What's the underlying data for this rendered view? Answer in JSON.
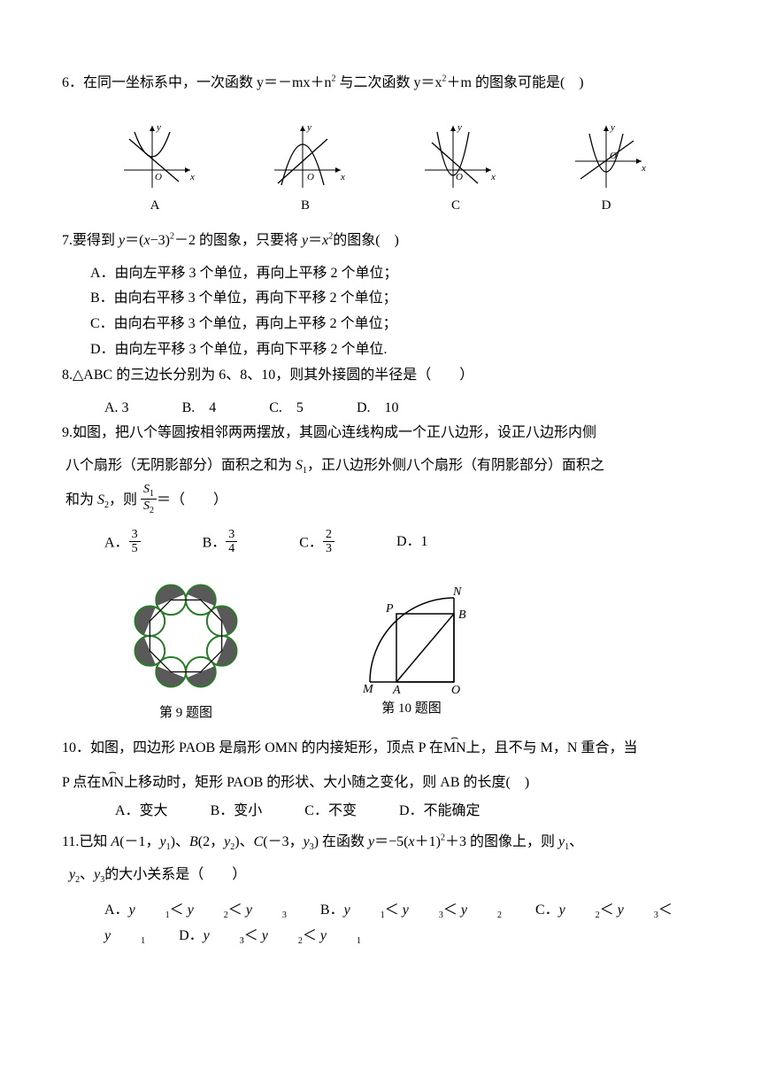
{
  "q6": {
    "num": "6．",
    "text": "在同一坐标系中，一次函数 y＝－mx＋n² 与二次函数 y＝x²＋m 的图象可能是(　)",
    "labels": [
      "A",
      "B",
      "C",
      "D"
    ]
  },
  "q7": {
    "num": "7.",
    "text": "要得到 ",
    "eq1": "y＝(x−3)²−2",
    "text2": " 的图象，只要将 ",
    "eq2": "y＝x²",
    "text3": "的图象(　)",
    "opts": {
      "a": "A．由向左平移 3 个单位，再向上平移 2 个单位；",
      "b": "B．由向右平移 3 个单位，再向下平移 2 个单位；",
      "c": "C．由向右平移 3 个单位，再向上平移 2 个单位；",
      "d": "D．由向左平移 3 个单位，再向下平移 2 个单位."
    }
  },
  "q8": {
    "num": "8.",
    "text": "△ABC 的三边长分别为 6、8、10，则其外接圆的半径是（　　）",
    "opts": {
      "a": "A. 3",
      "b": "B.　4",
      "c": "C.　5",
      "d": "D.　10"
    }
  },
  "q9": {
    "num": "9.",
    "line1": "如图，把八个等圆按相邻两两摆放，其圆心连线构成一个正八边形，设正八边形内侧",
    "line2_a": "八个扇形（无阴影部分）面积之和为 ",
    "s1": "S₁",
    "line2_b": "，正八边形外侧八个扇形（有阴影部分）面积之",
    "line3_a": "和为 ",
    "s2": "S₂",
    "line3_b": "，则 ",
    "line3_c": "＝（　　）",
    "frac_top": "S₁",
    "frac_bot": "S₂",
    "opts": {
      "a": "A．",
      "b": "B．",
      "c": "C．",
      "d": "D．1"
    },
    "frac_a": {
      "n": "3",
      "d": "5"
    },
    "frac_b": {
      "n": "3",
      "d": "4"
    },
    "frac_c": {
      "n": "2",
      "d": "3"
    },
    "cap1": "第 9 题图",
    "cap2": "第 10 题图",
    "fig2": {
      "N": "N",
      "P": "P",
      "B": "B",
      "M": "M",
      "A": "A",
      "O": "O"
    }
  },
  "q10": {
    "num": "10．",
    "line1a": "如图，四边形 PAOB 是扇形 OMN 的内接矩形，顶点 P 在",
    "mn1": "MN",
    "line1b": "上，且不与 M，N 重合，当",
    "line2a": "P 点在",
    "mn2": "MN",
    "line2b": "上移动时，矩形 PAOB 的形状、大小随之变化，则 AB 的长度(　)",
    "opts": {
      "a": "A．变大",
      "b": "B．变小",
      "c": "C．不变",
      "d": "D．不能确定"
    }
  },
  "q11": {
    "num": "11.",
    "line1": "已知 A(－1，y₁)、B(2，y₂)、C(－3，y₃) 在函数 y＝−5(x＋1)²＋3 的图像上，则 y₁、",
    "line2": "y₂、y₃的大小关系是（　　）",
    "opts": {
      "a": "A．y₁＜ y₂＜ y₃",
      "b": "B．y₁＜ y₃＜ y₂",
      "c": "C．y₂＜ y₃＜ y₁",
      "d": "D．y₃＜ y₂＜ y₁"
    }
  },
  "colors": {
    "octagon_stroke": "#2a7a2a",
    "octagon_fill_dark": "#595959",
    "octagon_fill_light": "#ffffff",
    "graph_stroke": "#000000"
  }
}
